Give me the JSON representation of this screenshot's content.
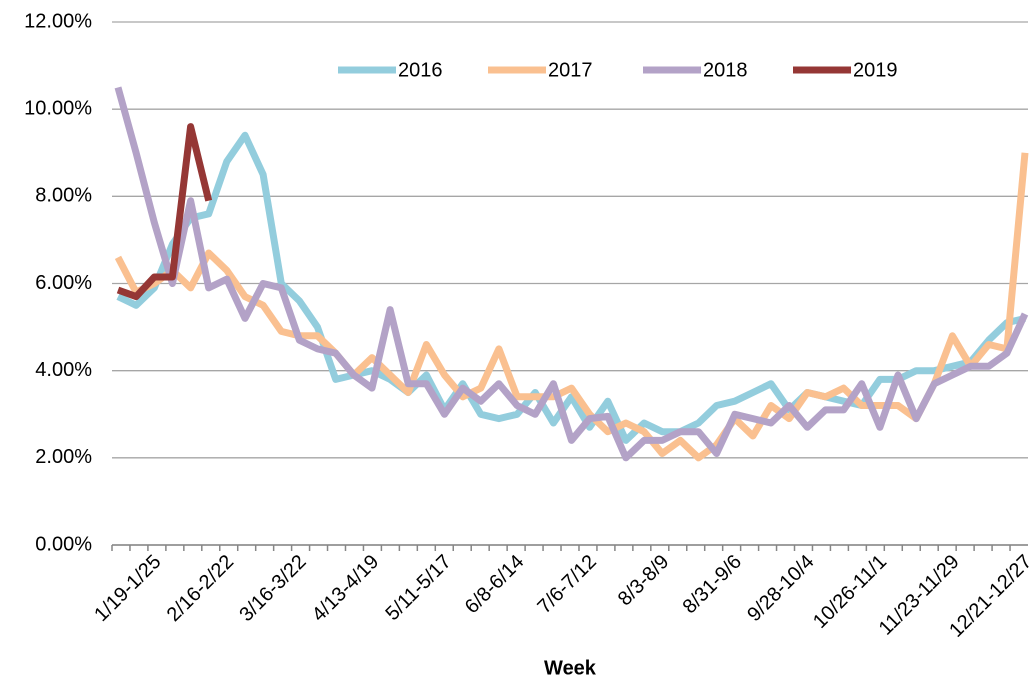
{
  "chart_data": {
    "type": "line",
    "x_label": "Week",
    "categories": [
      null,
      null,
      "1/19-1/25",
      null,
      null,
      null,
      "2/16-2/22",
      null,
      null,
      null,
      "3/16-3/22",
      null,
      null,
      null,
      "4/13-4/19",
      null,
      null,
      null,
      "5/11-5/17",
      null,
      null,
      null,
      "6/8-6/14",
      null,
      null,
      null,
      "7/6-7/12",
      null,
      null,
      null,
      "8/3-8/9",
      null,
      null,
      null,
      "8/31-9/6",
      null,
      null,
      null,
      "9/28-10/4",
      null,
      null,
      null,
      "10/26-11/1",
      null,
      null,
      null,
      "11/23-11/29",
      null,
      null,
      null,
      "12/21-12/27"
    ],
    "series": [
      {
        "name": "2016",
        "color": "#93cddd",
        "values": [
          5.7,
          5.5,
          5.9,
          6.9,
          7.5,
          7.6,
          8.8,
          9.4,
          8.5,
          6.0,
          5.6,
          5.0,
          3.8,
          3.9,
          4.0,
          3.8,
          3.5,
          3.9,
          3.1,
          3.7,
          3.0,
          2.9,
          3.0,
          3.5,
          2.8,
          3.4,
          2.7,
          3.3,
          2.4,
          2.8,
          2.6,
          2.6,
          2.8,
          3.2,
          3.3,
          3.5,
          3.7,
          3.1,
          3.5,
          3.4,
          3.3,
          3.2,
          3.8,
          3.8,
          4.0,
          4.0,
          4.1,
          4.2,
          4.7,
          5.1,
          5.2
        ]
      },
      {
        "name": "2017",
        "color": "#fac090",
        "values": [
          6.6,
          5.8,
          6.0,
          6.3,
          5.9,
          6.7,
          6.3,
          5.7,
          5.5,
          4.9,
          4.8,
          4.8,
          4.4,
          3.9,
          4.3,
          3.9,
          3.5,
          4.6,
          3.9,
          3.4,
          3.6,
          4.5,
          3.4,
          3.4,
          3.4,
          3.6,
          3.0,
          2.6,
          2.8,
          2.6,
          2.1,
          2.4,
          2.0,
          2.3,
          2.9,
          2.5,
          3.2,
          2.9,
          3.5,
          3.4,
          3.6,
          3.2,
          3.2,
          3.2,
          2.9,
          3.7,
          4.8,
          4.1,
          4.6,
          4.5,
          9.0
        ]
      },
      {
        "name": "2018",
        "color": "#b3a2c7",
        "values": [
          10.5,
          9.0,
          7.4,
          6.0,
          7.9,
          5.9,
          6.1,
          5.2,
          6.0,
          5.9,
          4.7,
          4.5,
          4.4,
          3.9,
          3.6,
          5.4,
          3.7,
          3.7,
          3.0,
          3.6,
          3.3,
          3.7,
          3.2,
          3.0,
          3.7,
          2.4,
          2.9,
          2.95,
          2.0,
          2.4,
          2.4,
          2.6,
          2.6,
          2.1,
          3.0,
          2.9,
          2.8,
          3.2,
          2.7,
          3.1,
          3.1,
          3.7,
          2.7,
          3.9,
          2.9,
          3.7,
          3.9,
          4.1,
          4.1,
          4.4,
          5.3
        ]
      },
      {
        "name": "2019",
        "color": "#953735",
        "values": [
          5.85,
          5.7,
          6.15,
          6.15,
          9.6,
          7.9,
          null,
          null,
          null,
          null,
          null,
          null,
          null,
          null,
          null,
          null,
          null,
          null,
          null,
          null,
          null,
          null,
          null,
          null,
          null,
          null,
          null,
          null,
          null,
          null,
          null,
          null,
          null,
          null,
          null,
          null,
          null,
          null,
          null,
          null,
          null,
          null,
          null,
          null,
          null,
          null,
          null,
          null,
          null,
          null,
          null
        ]
      }
    ],
    "ylim": [
      0,
      12
    ],
    "yticks": [
      {
        "value": 0,
        "label": "0.00%"
      },
      {
        "value": 2,
        "label": "2.00%"
      },
      {
        "value": 4,
        "label": "4.00%"
      },
      {
        "value": 6,
        "label": "6.00%"
      },
      {
        "value": 8,
        "label": "8.00%"
      },
      {
        "value": 10,
        "label": "10.00%"
      },
      {
        "value": 12,
        "label": "12.00%"
      }
    ],
    "grid": true,
    "legend": "top"
  }
}
